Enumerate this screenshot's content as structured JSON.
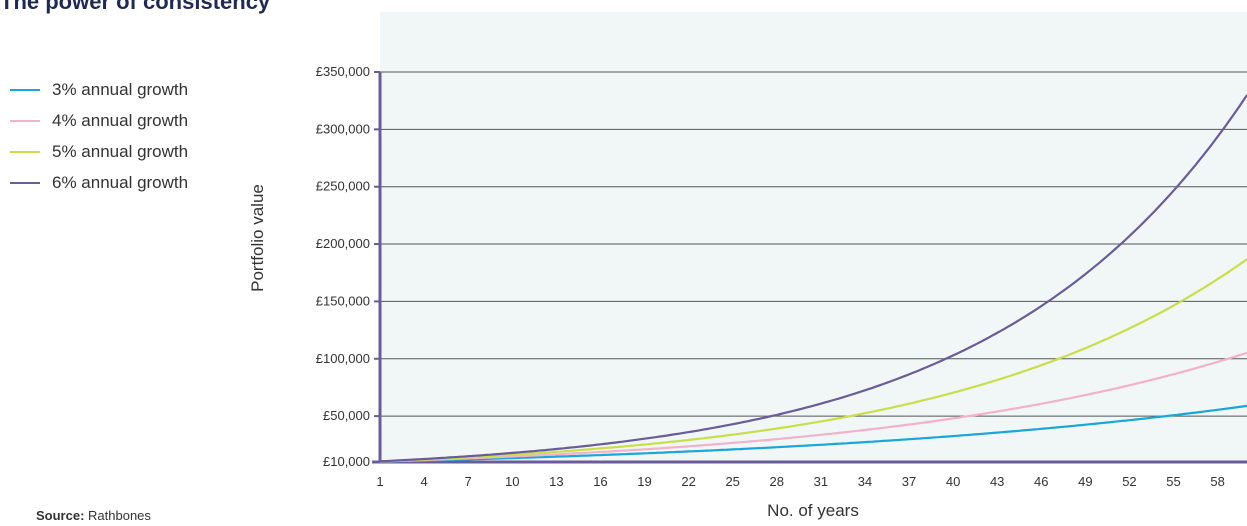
{
  "title": "The power of consistency",
  "source": {
    "label": "Source:",
    "text": "Rathbones"
  },
  "colors": {
    "background": "#f1f6f7",
    "axis": "#6a5b9a",
    "grid": "#555555"
  },
  "chart_data": {
    "type": "line",
    "xlabel": "No. of years",
    "ylabel": "Portfolio value",
    "x_ticks": [
      1,
      4,
      7,
      10,
      13,
      16,
      19,
      22,
      25,
      28,
      31,
      34,
      37,
      40,
      43,
      46,
      49,
      52,
      55,
      58
    ],
    "xlim": [
      1,
      60
    ],
    "y_ticks": [
      {
        "value": 10000,
        "label": "£10,000"
      },
      {
        "value": 50000,
        "label": "£50,000"
      },
      {
        "value": 100000,
        "label": "£100,000"
      },
      {
        "value": 150000,
        "label": "£150,000"
      },
      {
        "value": 200000,
        "label": "£200,000"
      },
      {
        "value": 250000,
        "label": "£250,000"
      },
      {
        "value": 300000,
        "label": "£300,000"
      },
      {
        "value": 350000,
        "label": "£350,000"
      }
    ],
    "ylim": [
      10000,
      350000
    ],
    "grid": true,
    "legend_position": "top-left",
    "series": [
      {
        "name": "3% annual growth",
        "color": "#1aa6d6",
        "x": [
          1,
          10,
          20,
          30,
          40,
          50,
          60
        ],
        "y": [
          10300,
          13400,
          18100,
          24300,
          32600,
          43800,
          58900
        ]
      },
      {
        "name": "4% annual growth",
        "color": "#f2b3c9",
        "x": [
          1,
          10,
          20,
          30,
          40,
          50,
          60
        ],
        "y": [
          10400,
          14800,
          21900,
          32400,
          48000,
          71100,
          105200
        ]
      },
      {
        "name": "5% annual growth",
        "color": "#c9df4a",
        "x": [
          1,
          10,
          20,
          30,
          40,
          50,
          60
        ],
        "y": [
          10500,
          16300,
          26500,
          43200,
          70400,
          114700,
          186800
        ]
      },
      {
        "name": "6% annual growth",
        "color": "#6a5b9a",
        "x": [
          1,
          10,
          20,
          30,
          40,
          50,
          60
        ],
        "y": [
          10600,
          17900,
          32100,
          57400,
          102900,
          184200,
          329900
        ]
      }
    ]
  }
}
